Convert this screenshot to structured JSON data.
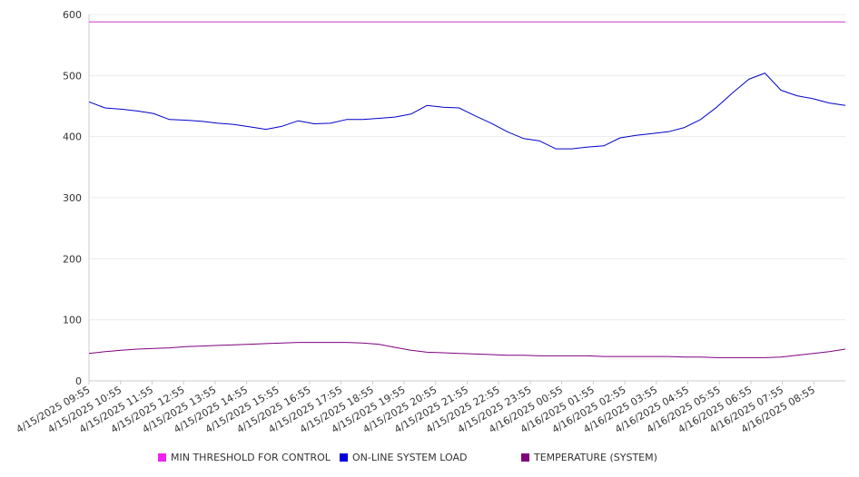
{
  "chart_data": {
    "type": "line",
    "title": "",
    "xlabel": "",
    "ylabel": "",
    "ylim": [
      0,
      600
    ],
    "yticks": [
      0,
      100,
      200,
      300,
      400,
      500,
      600
    ],
    "grid": true,
    "legend_position": "bottom",
    "x_tick_labels": [
      "4/15/2025 09:55",
      "4/15/2025 10:55",
      "4/15/2025 11:55",
      "4/15/2025 12:55",
      "4/15/2025 13:55",
      "4/15/2025 14:55",
      "4/15/2025 15:55",
      "4/15/2025 16:55",
      "4/15/2025 17:55",
      "4/15/2025 18:55",
      "4/15/2025 19:55",
      "4/15/2025 20:55",
      "4/15/2025 21:55",
      "4/15/2025 22:55",
      "4/15/2025 23:55",
      "4/16/2025 00:55",
      "4/16/2025 01:55",
      "4/16/2025 02:55",
      "4/16/2025 03:55",
      "4/16/2025 04:55",
      "4/16/2025 05:55",
      "4/16/2025 06:55",
      "4/16/2025 07:55",
      "4/16/2025 08:55"
    ],
    "x_points": [
      "4/15/2025 09:55",
      "4/15/2025 10:25",
      "4/15/2025 10:55",
      "4/15/2025 11:25",
      "4/15/2025 11:55",
      "4/15/2025 12:25",
      "4/15/2025 12:55",
      "4/15/2025 13:25",
      "4/15/2025 13:55",
      "4/15/2025 14:25",
      "4/15/2025 14:55",
      "4/15/2025 15:25",
      "4/15/2025 15:55",
      "4/15/2025 16:25",
      "4/15/2025 16:55",
      "4/15/2025 17:25",
      "4/15/2025 17:55",
      "4/15/2025 18:25",
      "4/15/2025 18:55",
      "4/15/2025 19:25",
      "4/15/2025 19:55",
      "4/15/2025 20:25",
      "4/15/2025 20:55",
      "4/15/2025 21:25",
      "4/15/2025 21:55",
      "4/15/2025 22:25",
      "4/15/2025 22:55",
      "4/15/2025 23:25",
      "4/15/2025 23:55",
      "4/16/2025 00:25",
      "4/16/2025 00:55",
      "4/16/2025 01:25",
      "4/16/2025 01:55",
      "4/16/2025 02:25",
      "4/16/2025 02:55",
      "4/16/2025 03:25",
      "4/16/2025 03:55",
      "4/16/2025 04:25",
      "4/16/2025 04:55",
      "4/16/2025 05:25",
      "4/16/2025 05:55",
      "4/16/2025 06:25",
      "4/16/2025 06:55",
      "4/16/2025 07:25",
      "4/16/2025 07:55",
      "4/16/2025 08:25",
      "4/16/2025 08:55",
      "4/16/2025 09:25"
    ],
    "series": [
      {
        "name": "MIN THRESHOLD FOR CONTROL",
        "color": "#cc33cc",
        "values": [
          588,
          588,
          588,
          588,
          588,
          588,
          588,
          588,
          588,
          588,
          588,
          588,
          588,
          588,
          588,
          588,
          588,
          588,
          588,
          588,
          588,
          588,
          588,
          588,
          588,
          588,
          588,
          588,
          588,
          588,
          588,
          588,
          588,
          588,
          588,
          588,
          588,
          588,
          588,
          588,
          588,
          588,
          588,
          588,
          588,
          588,
          588,
          588
        ]
      },
      {
        "name": "ON-LINE SYSTEM LOAD",
        "color": "#0000cc",
        "values": [
          457,
          447,
          445,
          442,
          438,
          428,
          427,
          425,
          422,
          420,
          416,
          412,
          417,
          426,
          421,
          422,
          428,
          428,
          430,
          432,
          437,
          451,
          448,
          447,
          434,
          422,
          408,
          397,
          393,
          380,
          380,
          383,
          385,
          398,
          402,
          405,
          408,
          415,
          428,
          448,
          472,
          494,
          504,
          476,
          467,
          462,
          455,
          451
        ]
      },
      {
        "name": "TEMPERATURE (SYSTEM)",
        "color": "#800080",
        "values": [
          45,
          48,
          50,
          52,
          53,
          54,
          56,
          57,
          58,
          59,
          60,
          61,
          62,
          63,
          63,
          63,
          63,
          62,
          60,
          55,
          50,
          47,
          46,
          45,
          44,
          43,
          42,
          42,
          41,
          41,
          41,
          41,
          40,
          40,
          40,
          40,
          40,
          39,
          39,
          38,
          38,
          38,
          38,
          39,
          42,
          45,
          48,
          52
        ]
      }
    ]
  },
  "legend": {
    "items": [
      {
        "label": "MIN THRESHOLD FOR CONTROL",
        "color": "#ee22ee"
      },
      {
        "label": "ON-LINE SYSTEM LOAD",
        "color": "#0000dd"
      },
      {
        "label": "TEMPERATURE (SYSTEM)",
        "color": "#800080"
      }
    ]
  }
}
